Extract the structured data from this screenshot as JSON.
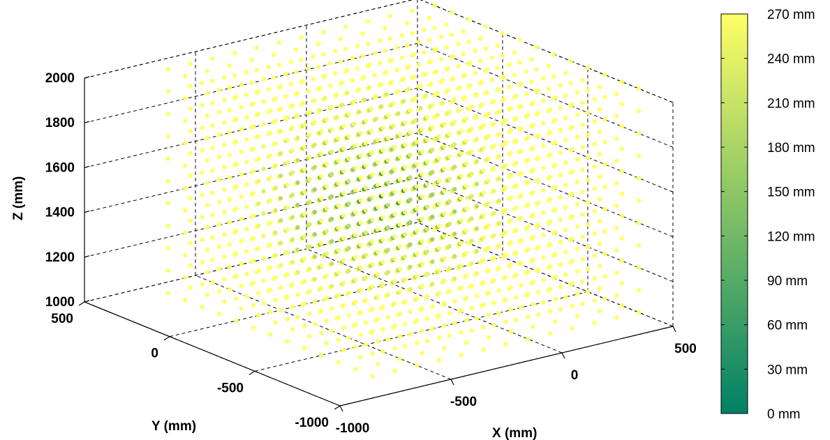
{
  "chart_data": {
    "type": "scatter3d",
    "xlabel": "X (mm)",
    "ylabel": "Y (mm)",
    "zlabel": "Z (mm)",
    "xlim": [
      -1000,
      500
    ],
    "ylim": [
      -1000,
      500
    ],
    "zlim": [
      1000,
      2000
    ],
    "xticks": [
      -1000,
      -500,
      0,
      500
    ],
    "yticks": [
      -1000,
      -500,
      0,
      500
    ],
    "zticks": [
      1000,
      1200,
      1400,
      1600,
      1800,
      2000
    ],
    "xtick_labels": [
      "-1000",
      "-500",
      "0",
      "500"
    ],
    "ytick_labels": [
      "-1000",
      "-500",
      "0",
      "500"
    ],
    "ztick_labels": [
      "1000",
      "1200",
      "1400",
      "1600",
      "1800",
      "2000"
    ],
    "grid": true,
    "points": {
      "description_of_layout": "regular 3D lattice of points filling the box",
      "x_range": [
        -700,
        500
      ],
      "y_range": [
        -800,
        400
      ],
      "z_range": [
        1000,
        2000
      ],
      "spacing_mm": 100,
      "color_value": "distance from center point",
      "center": [
        -200,
        -200,
        1500
      ]
    },
    "colorbar": {
      "min": 0,
      "max": 270,
      "ticks": [
        0,
        30,
        60,
        90,
        120,
        150,
        180,
        210,
        240,
        270
      ],
      "tick_labels": [
        "0 mm",
        "30 mm",
        "60 mm",
        "90 mm",
        "120 mm",
        "150 mm",
        "180 mm",
        "210 mm",
        "240 mm",
        "270 mm"
      ],
      "colors": [
        "#008066",
        "#ffff66"
      ]
    }
  }
}
